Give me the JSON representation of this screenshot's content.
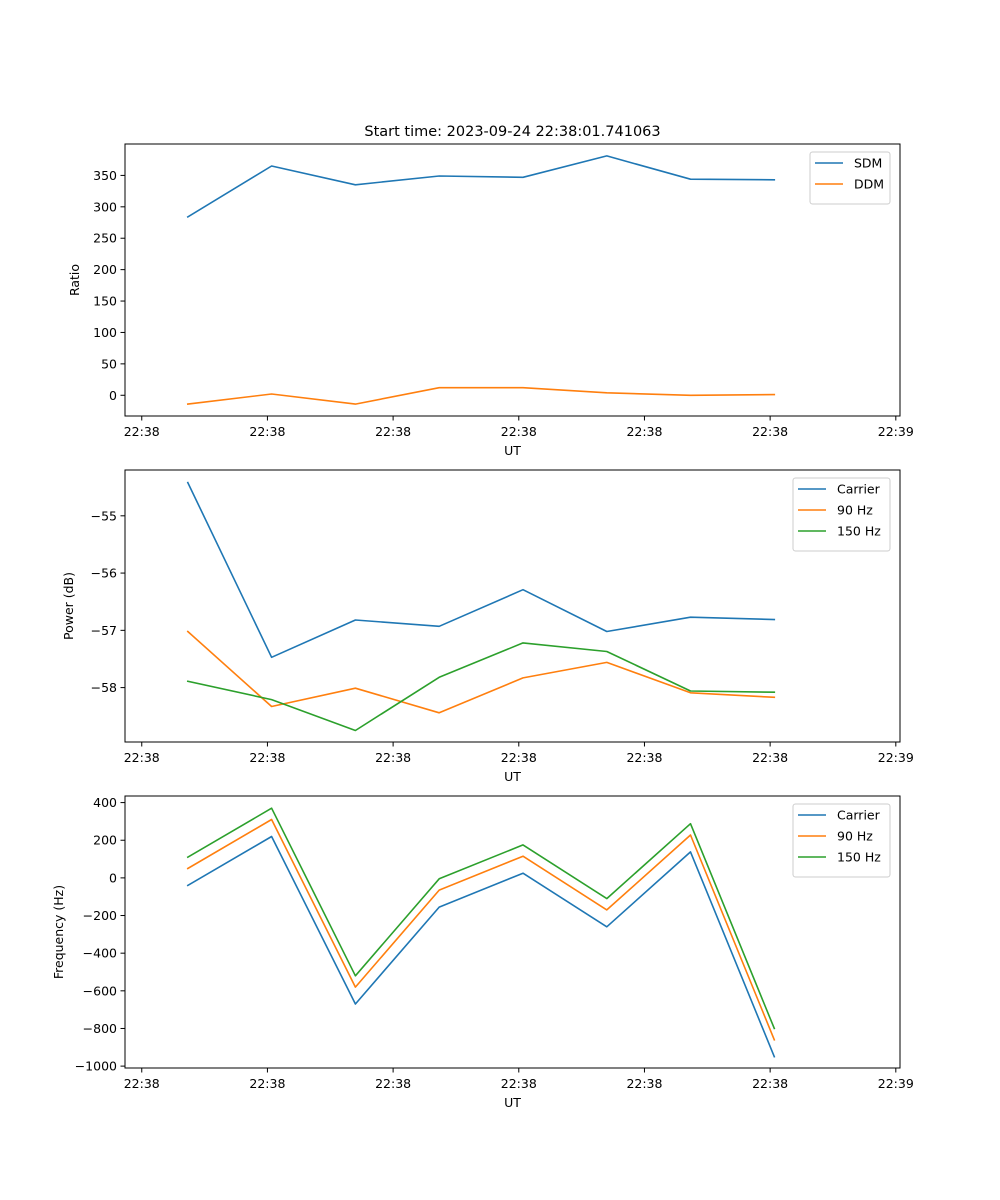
{
  "chart_data": [
    {
      "type": "line",
      "title": "Start time: 2023-09-24 22:38:01.741063",
      "xlabel": "UT",
      "ylabel": "Ratio",
      "x": [
        0,
        1,
        2,
        3,
        4,
        5,
        6,
        7
      ],
      "xlim": [
        -0.75,
        8.5
      ],
      "x_ticks": [
        -0.55,
        0.95,
        2.45,
        3.95,
        5.45,
        6.95,
        8.45
      ],
      "x_tick_labels": [
        "22:38",
        "22:38",
        "22:38",
        "22:38",
        "22:38",
        "22:38",
        "22:39"
      ],
      "ylim": [
        -33,
        400
      ],
      "y_ticks": [
        0,
        50,
        100,
        150,
        200,
        250,
        300,
        350
      ],
      "y_tick_labels": [
        "0",
        "50",
        "100",
        "150",
        "200",
        "250",
        "300",
        "350"
      ],
      "legend_position": "top-right",
      "series": [
        {
          "name": "SDM",
          "color": "#1f77b4",
          "values": [
            284,
            365,
            335,
            349,
            347,
            381,
            344,
            343
          ]
        },
        {
          "name": "DDM",
          "color": "#ff7f0e",
          "values": [
            -14,
            2,
            -14,
            12,
            12,
            4,
            0,
            1
          ]
        }
      ]
    },
    {
      "type": "line",
      "title": "",
      "xlabel": "UT",
      "ylabel": "Power (dB)",
      "x": [
        0,
        1,
        2,
        3,
        4,
        5,
        6,
        7
      ],
      "xlim": [
        -0.75,
        8.5
      ],
      "x_ticks": [
        -0.55,
        0.95,
        2.45,
        3.95,
        5.45,
        6.95,
        8.45
      ],
      "x_tick_labels": [
        "22:38",
        "22:38",
        "22:38",
        "22:38",
        "22:38",
        "22:38",
        "22:39"
      ],
      "ylim": [
        -58.95,
        -54.2
      ],
      "y_ticks": [
        -58,
        -57,
        -56,
        -55
      ],
      "y_tick_labels": [
        "−58",
        "−57",
        "−56",
        "−55"
      ],
      "legend_position": "top-right",
      "series": [
        {
          "name": "Carrier",
          "color": "#1f77b4",
          "values": [
            -54.42,
            -57.47,
            -56.82,
            -56.93,
            -56.29,
            -57.02,
            -56.77,
            -56.81
          ]
        },
        {
          "name": "90 Hz",
          "color": "#ff7f0e",
          "values": [
            -57.02,
            -58.33,
            -58.01,
            -58.44,
            -57.83,
            -57.56,
            -58.09,
            -58.17
          ]
        },
        {
          "name": "150 Hz",
          "color": "#2ca02c",
          "values": [
            -57.89,
            -58.21,
            -58.75,
            -57.82,
            -57.22,
            -57.37,
            -58.06,
            -58.08
          ]
        }
      ]
    },
    {
      "type": "line",
      "title": "",
      "xlabel": "UT",
      "ylabel": "Frequency (Hz)",
      "x": [
        0,
        1,
        2,
        3,
        4,
        5,
        6,
        7
      ],
      "xlim": [
        -0.75,
        8.5
      ],
      "x_ticks": [
        -0.55,
        0.95,
        2.45,
        3.95,
        5.45,
        6.95,
        8.45
      ],
      "x_tick_labels": [
        "22:38",
        "22:38",
        "22:38",
        "22:38",
        "22:38",
        "22:38",
        "22:39"
      ],
      "ylim": [
        -1010,
        435
      ],
      "y_ticks": [
        -1000,
        -800,
        -600,
        -400,
        -200,
        0,
        200,
        400
      ],
      "y_tick_labels": [
        "−1000",
        "−800",
        "−600",
        "−400",
        "−200",
        "0",
        "200",
        "400"
      ],
      "legend_position": "top-right",
      "series": [
        {
          "name": "Carrier",
          "color": "#1f77b4",
          "values": [
            -40,
            220,
            -670,
            -155,
            25,
            -260,
            138,
            -950
          ]
        },
        {
          "name": "90 Hz",
          "color": "#ff7f0e",
          "values": [
            50,
            310,
            -580,
            -65,
            115,
            -170,
            228,
            -860
          ]
        },
        {
          "name": "150 Hz",
          "color": "#2ca02c",
          "values": [
            110,
            370,
            -520,
            -5,
            175,
            -110,
            288,
            -800
          ]
        }
      ]
    }
  ]
}
